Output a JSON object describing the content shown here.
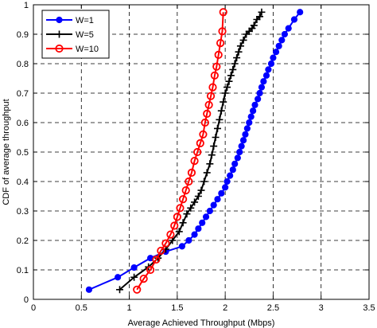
{
  "chart_data": {
    "type": "line",
    "xlabel": "Average Achieved Throughput (Mbps)",
    "ylabel": "CDF of average throughput",
    "xlim": [
      0,
      3.5
    ],
    "ylim": [
      0,
      1
    ],
    "xticks": [
      0,
      0.5,
      1,
      1.5,
      2,
      2.5,
      3,
      3.5
    ],
    "yticks": [
      0,
      0.1,
      0.2,
      0.3,
      0.4,
      0.5,
      0.6,
      0.7,
      0.8,
      0.9,
      1
    ],
    "xtick_labels": [
      "0",
      "0.5",
      "1",
      "1.5",
      "2",
      "2.5",
      "3",
      "3.5"
    ],
    "ytick_labels": [
      "0",
      "0.1",
      "0.2",
      "0.3",
      "0.4",
      "0.5",
      "0.6",
      "0.7",
      "0.8",
      "0.9",
      "1"
    ],
    "grid": true,
    "legend_position": "top-left",
    "series": [
      {
        "name": "W=1",
        "color": "#0000ff",
        "marker": "filled-circle",
        "x": [
          0.58,
          0.88,
          1.05,
          1.22,
          1.38,
          1.55,
          1.62,
          1.68,
          1.72,
          1.76,
          1.8,
          1.84,
          1.88,
          1.92,
          1.96,
          2.0,
          2.02,
          2.05,
          2.08,
          2.1,
          2.13,
          2.15,
          2.17,
          2.19,
          2.21,
          2.23,
          2.25,
          2.27,
          2.29,
          2.31,
          2.34,
          2.36,
          2.38,
          2.4,
          2.43,
          2.45,
          2.48,
          2.5,
          2.53,
          2.56,
          2.59,
          2.62,
          2.66,
          2.72,
          2.78
        ],
        "y": [
          0.033,
          0.075,
          0.108,
          0.14,
          0.162,
          0.18,
          0.2,
          0.22,
          0.24,
          0.26,
          0.28,
          0.3,
          0.32,
          0.34,
          0.36,
          0.38,
          0.4,
          0.42,
          0.44,
          0.46,
          0.48,
          0.5,
          0.52,
          0.54,
          0.56,
          0.58,
          0.6,
          0.62,
          0.64,
          0.66,
          0.68,
          0.7,
          0.72,
          0.74,
          0.76,
          0.78,
          0.8,
          0.82,
          0.84,
          0.86,
          0.88,
          0.9,
          0.92,
          0.95,
          0.975
        ]
      },
      {
        "name": "W=5",
        "color": "#000000",
        "marker": "plus",
        "x": [
          0.9,
          1.05,
          1.2,
          1.3,
          1.38,
          1.45,
          1.52,
          1.56,
          1.6,
          1.64,
          1.68,
          1.72,
          1.75,
          1.78,
          1.81,
          1.84,
          1.86,
          1.88,
          1.9,
          1.92,
          1.94,
          1.96,
          1.98,
          2.0,
          2.02,
          2.04,
          2.06,
          2.08,
          2.1,
          2.12,
          2.14,
          2.16,
          2.19,
          2.22,
          2.25,
          2.28,
          2.3,
          2.33,
          2.36,
          2.38
        ],
        "y": [
          0.033,
          0.075,
          0.11,
          0.14,
          0.17,
          0.2,
          0.23,
          0.26,
          0.29,
          0.31,
          0.33,
          0.35,
          0.37,
          0.4,
          0.43,
          0.46,
          0.49,
          0.52,
          0.55,
          0.58,
          0.61,
          0.64,
          0.67,
          0.7,
          0.72,
          0.74,
          0.76,
          0.78,
          0.8,
          0.82,
          0.84,
          0.86,
          0.88,
          0.9,
          0.91,
          0.92,
          0.93,
          0.95,
          0.96,
          0.975
        ]
      },
      {
        "name": "W=10",
        "color": "#ff0000",
        "marker": "open-circle",
        "x": [
          1.08,
          1.15,
          1.22,
          1.28,
          1.33,
          1.38,
          1.43,
          1.47,
          1.5,
          1.53,
          1.56,
          1.59,
          1.62,
          1.65,
          1.68,
          1.71,
          1.74,
          1.77,
          1.79,
          1.81,
          1.83,
          1.85,
          1.87,
          1.89,
          1.91,
          1.93,
          1.95,
          1.97,
          1.98
        ],
        "y": [
          0.033,
          0.07,
          0.1,
          0.135,
          0.165,
          0.19,
          0.22,
          0.25,
          0.28,
          0.31,
          0.34,
          0.37,
          0.4,
          0.43,
          0.47,
          0.5,
          0.53,
          0.56,
          0.6,
          0.63,
          0.66,
          0.69,
          0.72,
          0.76,
          0.79,
          0.83,
          0.87,
          0.91,
          0.975
        ]
      }
    ]
  }
}
